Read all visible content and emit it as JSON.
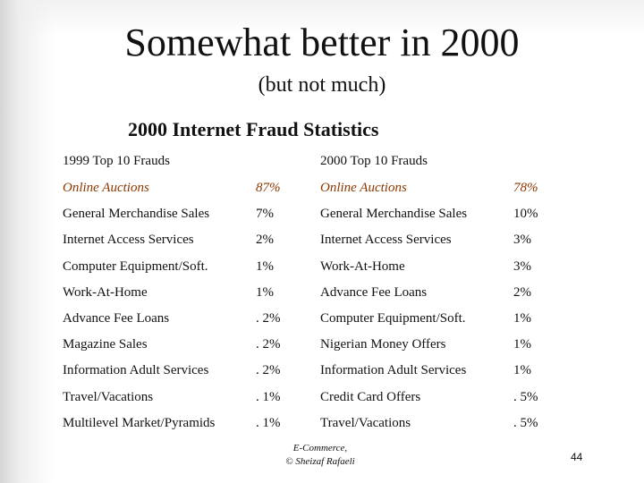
{
  "slide": {
    "title": "Somewhat better in 2000",
    "subtitle": "(but not much)",
    "table_title": "2000 Internet Fraud Statistics",
    "accent_color": "#8a3800"
  },
  "table": {
    "header_1999": "1999 Top 10 Frauds",
    "header_2000": "2000 Top 10 Frauds",
    "rows": [
      {
        "fraud_1999": "Online Auctions",
        "pct_1999": "87%",
        "fraud_2000": "Online Auctions",
        "pct_2000": "78%"
      },
      {
        "fraud_1999": "General Merchandise Sales",
        "pct_1999": "7%",
        "fraud_2000": "General Merchandise Sales",
        "pct_2000": "10%"
      },
      {
        "fraud_1999": "Internet Access Services",
        "pct_1999": "2%",
        "fraud_2000": "Internet Access Services",
        "pct_2000": "3%"
      },
      {
        "fraud_1999": "Computer Equipment/Soft.",
        "pct_1999": "1%",
        "fraud_2000": "Work-At-Home",
        "pct_2000": "3%"
      },
      {
        "fraud_1999": "Work-At-Home",
        "pct_1999": "1%",
        "fraud_2000": "Advance Fee Loans",
        "pct_2000": "2%"
      },
      {
        "fraud_1999": "Advance Fee Loans",
        "pct_1999": ". 2%",
        "fraud_2000": "Computer Equipment/Soft.",
        "pct_2000": "1%"
      },
      {
        "fraud_1999": "Magazine Sales",
        "pct_1999": ". 2%",
        "fraud_2000": "Nigerian Money Offers",
        "pct_2000": "1%"
      },
      {
        "fraud_1999": "Information Adult Services",
        "pct_1999": ". 2%",
        "fraud_2000": "Information Adult Services",
        "pct_2000": "1%"
      },
      {
        "fraud_1999": "Travel/Vacations",
        "pct_1999": ". 1%",
        "fraud_2000": "Credit Card Offers",
        "pct_2000": ". 5%"
      },
      {
        "fraud_1999": "Multilevel Market/Pyramids",
        "pct_1999": ". 1%",
        "fraud_2000": "Travel/Vacations",
        "pct_2000": ". 5%"
      }
    ]
  },
  "footer": {
    "line1": "E-Commerce,",
    "line2": "© Sheizaf Rafaeli",
    "page_number": "44"
  }
}
